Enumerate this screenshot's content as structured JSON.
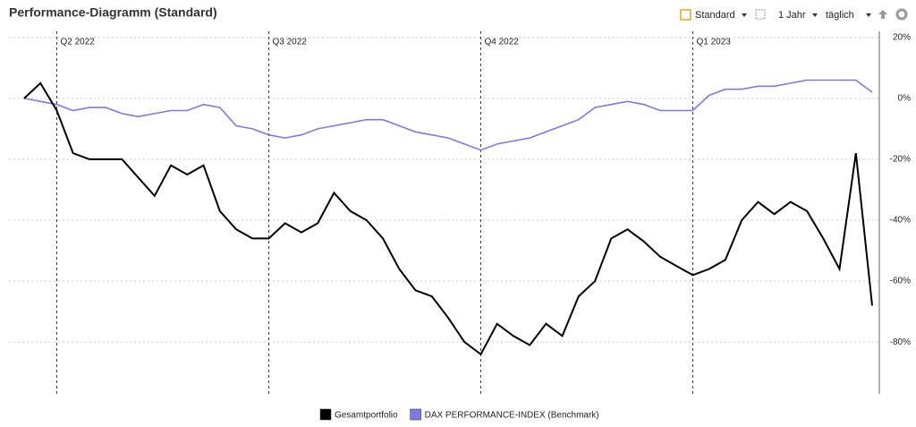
{
  "toolbar": {
    "view": "Standard",
    "period": "1 Jahr",
    "interval": "täglich"
  },
  "chart_data": {
    "type": "line",
    "title": "Performance-Diagramm (Standard)",
    "categories": [
      null,
      null,
      "Q2 2022",
      null,
      null,
      null,
      null,
      null,
      null,
      null,
      null,
      null,
      null,
      null,
      null,
      "Q3 2022",
      null,
      null,
      null,
      null,
      null,
      null,
      null,
      null,
      null,
      null,
      null,
      null,
      "Q4 2022",
      null,
      null,
      null,
      null,
      null,
      null,
      null,
      null,
      null,
      null,
      null,
      null,
      "Q1 2023",
      null,
      null,
      null,
      null,
      null,
      null,
      null,
      null,
      null,
      null,
      null
    ],
    "series": [
      {
        "name": "Gesamtportfolio",
        "color": "#000000",
        "values": [
          0,
          5,
          -4,
          -18,
          -20,
          -20,
          -20,
          -26,
          -32,
          -22,
          -25,
          -22,
          -37,
          -43,
          -46,
          -46,
          -41,
          -44,
          -41,
          -31,
          -37,
          -40,
          -46,
          -56,
          -63,
          -65,
          -72,
          -80,
          -84,
          -74,
          -78,
          -81,
          -74,
          -78,
          -65,
          -60,
          -46,
          -43,
          -47,
          -52,
          -55,
          -58,
          -56,
          -53,
          -40,
          -34,
          -38,
          -34,
          -37,
          -46,
          -56,
          -18,
          -68
        ]
      },
      {
        "name": "DAX PERFORMANCE-INDEX (Benchmark)",
        "color": "#7b7be0",
        "values": [
          0,
          -1,
          -2,
          -4,
          -3,
          -3,
          -5,
          -6,
          -5,
          -4,
          -4,
          -2,
          -3,
          -9,
          -10,
          -12,
          -13,
          -12,
          -10,
          -9,
          -8,
          -7,
          -7,
          -9,
          -11,
          -12,
          -13,
          -15,
          -17,
          -15,
          -14,
          -13,
          -11,
          -9,
          -7,
          -3,
          -2,
          -1,
          -2,
          -4,
          -4,
          -4,
          1,
          3,
          3,
          4,
          4,
          5,
          6,
          6,
          6,
          6,
          2
        ]
      }
    ],
    "ylim": [
      -97,
      22
    ],
    "yticks": [
      {
        "value": 20,
        "label": "20%"
      },
      {
        "value": 0,
        "label": "0%"
      },
      {
        "value": -20,
        "label": "-20%"
      },
      {
        "value": -40,
        "label": "-40%"
      },
      {
        "value": -60,
        "label": "-60%"
      },
      {
        "value": -80,
        "label": "-80%"
      }
    ],
    "grid": true
  }
}
